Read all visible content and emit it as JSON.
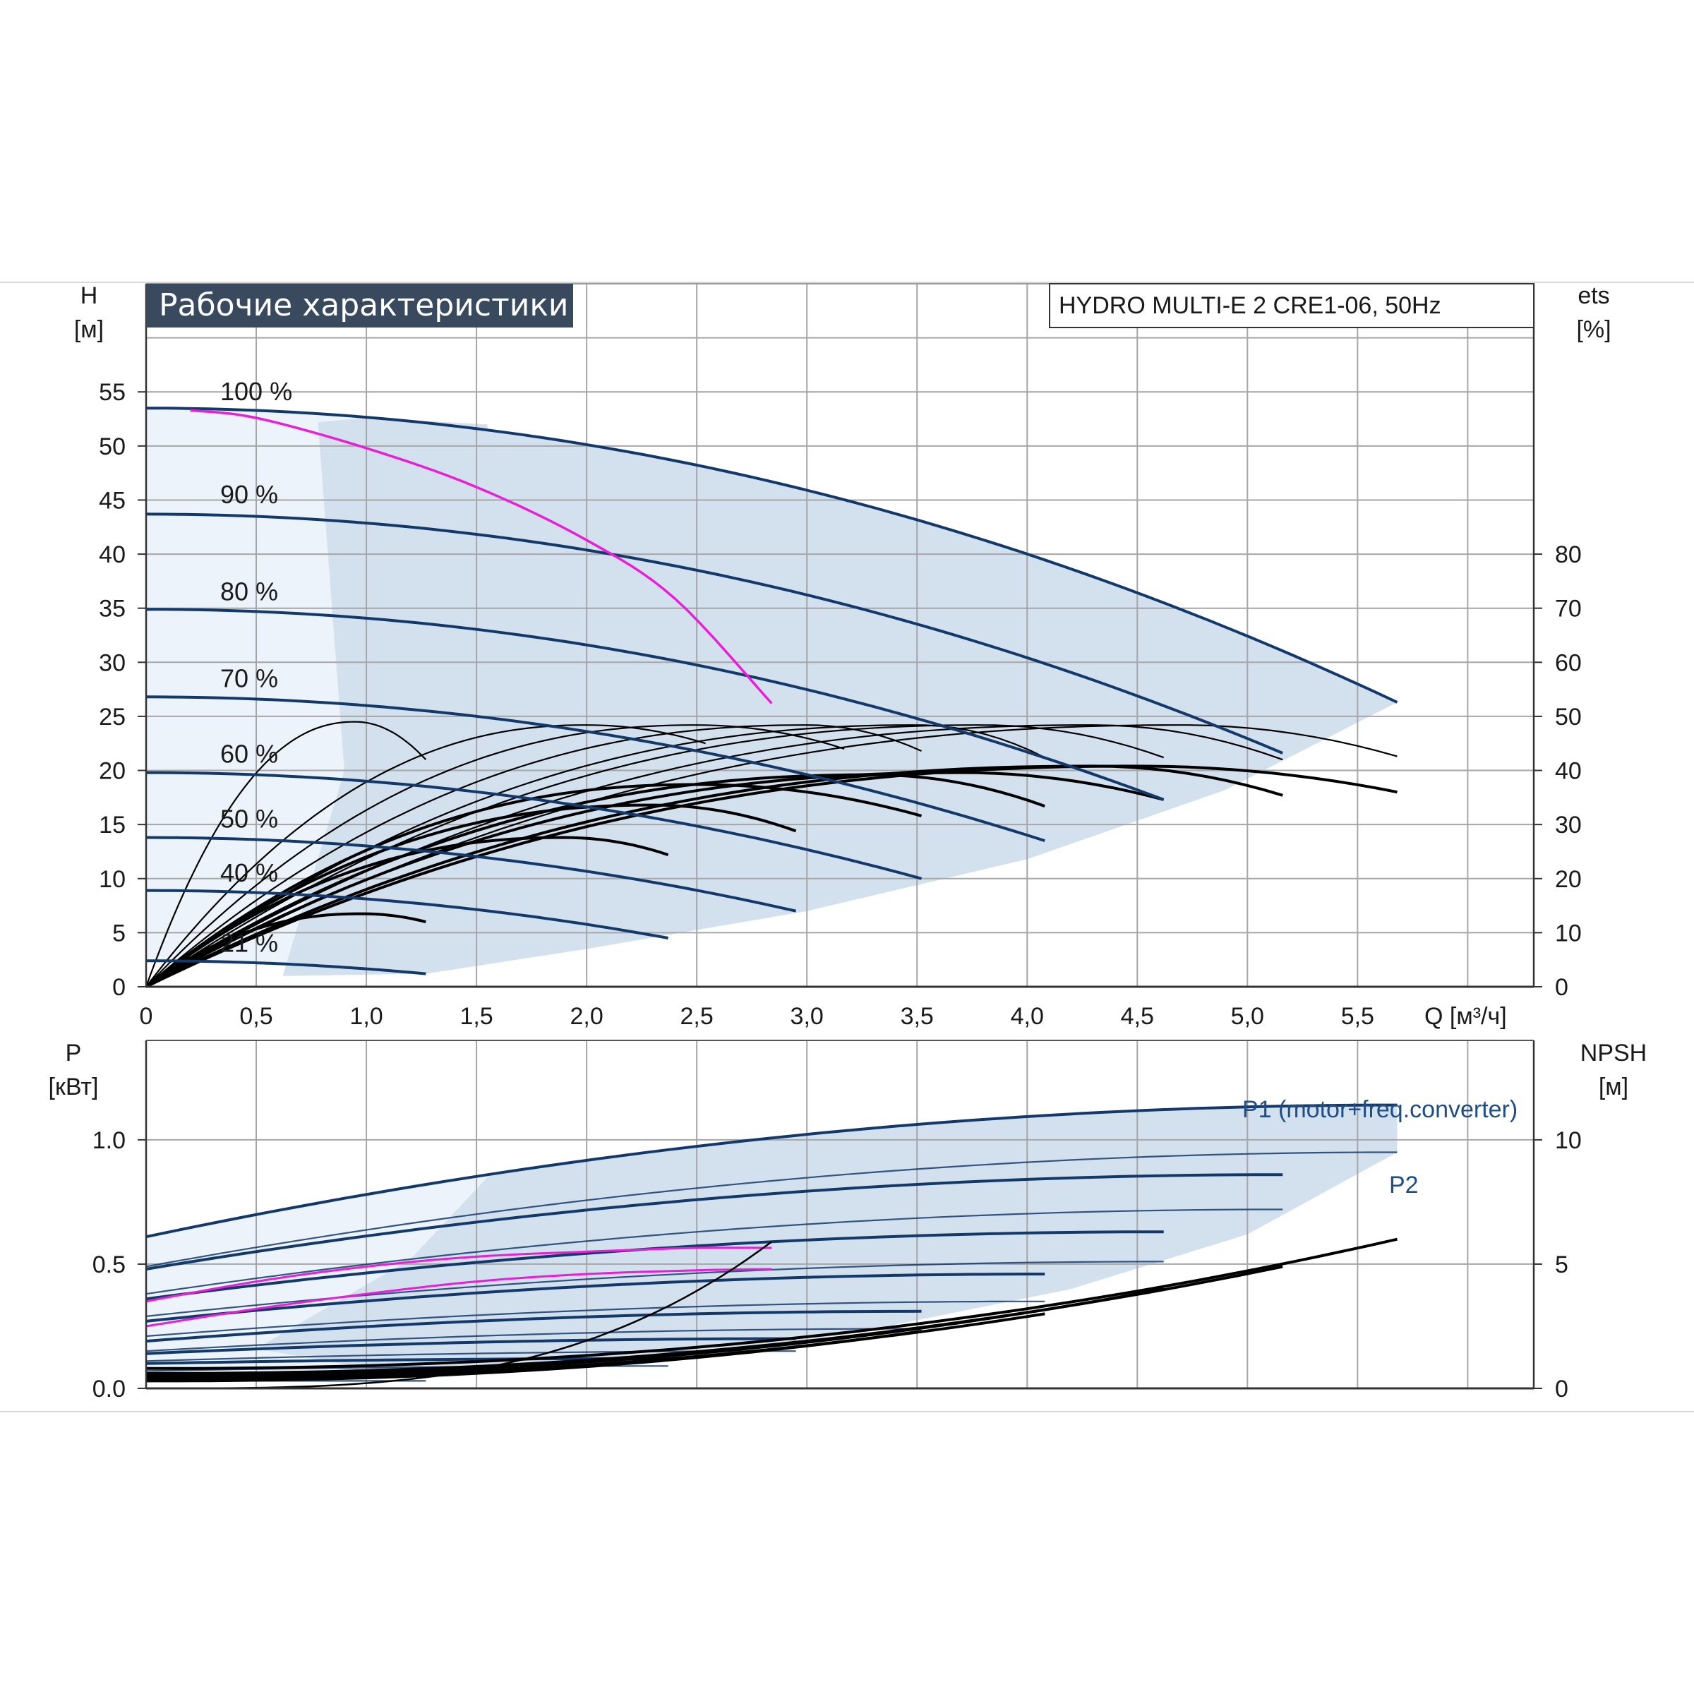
{
  "title": "Рабочие характеристики",
  "model": "HYDRO MULTI-E 2 CRE1-06, 50Hz",
  "colors": {
    "curve_blue": "#13396b",
    "pink": "#e81ed8",
    "black": "#000000",
    "area_dark": "#d3e0ee",
    "area_light": "#ecf3fa",
    "title_bg": "#3a4a5e",
    "grid": "#a6a6a6"
  },
  "chart_data": [
    {
      "id": "head",
      "type": "line",
      "y_label": "H",
      "y_unit": "[м]",
      "y2_label": "ets",
      "y2_unit": "[%]",
      "x_label": "Q [м³/ч]",
      "xlim": [
        0,
        6.3
      ],
      "ylim": [
        0,
        65
      ],
      "y2lim": [
        0,
        130
      ],
      "x_ticks": [
        "0",
        "0,5",
        "1,0",
        "1,5",
        "2,0",
        "2,5",
        "3,0",
        "3,5",
        "4,0",
        "4,5",
        "5,0",
        "5,5"
      ],
      "y_ticks": [
        "0",
        "5",
        "10",
        "15",
        "20",
        "25",
        "30",
        "35",
        "40",
        "45",
        "50",
        "55"
      ],
      "y2_ticks": [
        "0",
        "10",
        "20",
        "30",
        "40",
        "50",
        "60",
        "70",
        "80"
      ],
      "speed_labels": [
        {
          "text": "100 %",
          "y": 55
        },
        {
          "text": "90 %",
          "y": 45.5
        },
        {
          "text": "80 %",
          "y": 36.5
        },
        {
          "text": "70 %",
          "y": 28.5
        },
        {
          "text": "60 %",
          "y": 21.5
        },
        {
          "text": "50 %",
          "y": 15.5
        },
        {
          "text": "40 %",
          "y": 10.5
        },
        {
          "text": "21 %",
          "y": 4
        }
      ],
      "h_curves": [
        {
          "speed": 100,
          "h0": 53.5,
          "qmax": 5.68,
          "hend": 26.3
        },
        {
          "speed": 90,
          "h0": 43.7,
          "qmax": 5.16,
          "hend": 21.6
        },
        {
          "speed": 80,
          "h0": 34.9,
          "qmax": 4.62,
          "hend": 17.3
        },
        {
          "speed": 70,
          "h0": 26.8,
          "qmax": 4.08,
          "hend": 13.5
        },
        {
          "speed": 60,
          "h0": 19.8,
          "qmax": 3.52,
          "hend": 10.0
        },
        {
          "speed": 50,
          "h0": 13.8,
          "qmax": 2.95,
          "hend": 7.0
        },
        {
          "speed": 40,
          "h0": 8.9,
          "qmax": 2.37,
          "hend": 4.5
        },
        {
          "speed": 21,
          "h0": 2.4,
          "qmax": 1.27,
          "hend": 1.2
        }
      ],
      "pink_curve": {
        "x": [
          0.2,
          0.5,
          1.0,
          1.5,
          2.0,
          2.4,
          2.84
        ],
        "y": [
          53.3,
          52.6,
          49.8,
          46.2,
          41.3,
          35.9,
          26.2
        ]
      },
      "eta_curves": [
        {
          "peak_x": 0.95,
          "peak_eta": 49,
          "end_x": 1.27,
          "end_eta": 42
        },
        {
          "peak_x": 2.0,
          "peak_eta": 48.4,
          "end_x": 2.54,
          "end_eta": 45
        },
        {
          "peak_x": 2.5,
          "peak_eta": 48.4,
          "end_x": 3.17,
          "end_eta": 44
        },
        {
          "peak_x": 3.0,
          "peak_eta": 48.4,
          "end_x": 3.52,
          "end_eta": 43.6
        },
        {
          "peak_x": 3.5,
          "peak_eta": 48.4,
          "end_x": 4.08,
          "end_eta": 42.4
        },
        {
          "peak_x": 3.8,
          "peak_eta": 48.4,
          "end_x": 4.62,
          "end_eta": 42.4
        },
        {
          "peak_x": 4.3,
          "peak_eta": 48.4,
          "end_x": 5.16,
          "end_eta": 42
        },
        {
          "peak_x": 4.7,
          "peak_eta": 48.4,
          "end_x": 5.68,
          "end_eta": 42.6
        },
        {
          "peak_x": 0.98,
          "peak_eta": 13.5,
          "end_x": 1.27,
          "end_eta": 12
        },
        {
          "peak_x": 1.9,
          "peak_eta": 27.6,
          "end_x": 2.37,
          "end_eta": 24.4
        },
        {
          "peak_x": 2.3,
          "peak_eta": 33.6,
          "end_x": 2.95,
          "end_eta": 28.8
        },
        {
          "peak_x": 2.5,
          "peak_eta": 37.4,
          "end_x": 3.52,
          "end_eta": 31.6
        },
        {
          "peak_x": 3.3,
          "peak_eta": 39.2,
          "end_x": 4.08,
          "end_eta": 33.4
        },
        {
          "peak_x": 3.7,
          "peak_eta": 39.6,
          "end_x": 4.62,
          "end_eta": 34.6
        },
        {
          "peak_x": 4.3,
          "peak_eta": 40.8,
          "end_x": 5.16,
          "end_eta": 35.4
        },
        {
          "peak_x": 4.5,
          "peak_eta": 40.8,
          "end_x": 5.68,
          "end_eta": 36
        }
      ]
    },
    {
      "id": "power",
      "type": "line",
      "y_label": "P",
      "y_unit": "[кВт]",
      "y2_label": "NPSH",
      "y2_unit": "[м]",
      "xlim": [
        0,
        6.3
      ],
      "ylim": [
        0,
        1.4
      ],
      "y2lim": [
        0,
        14
      ],
      "y_ticks": [
        "0.0",
        "0.5",
        "1.0"
      ],
      "y2_ticks": [
        "0",
        "5",
        "10"
      ],
      "legend": [
        {
          "label": "P1 (motor+freq.converter)"
        },
        {
          "label": "P2"
        }
      ],
      "p1_curves": [
        {
          "speed": 100,
          "p0": 0.61,
          "pmax": 1.14,
          "qmax": 5.68
        },
        {
          "speed": 90,
          "p0": 0.48,
          "pmax": 0.86,
          "qmax": 5.16
        },
        {
          "speed": 80,
          "p0": 0.36,
          "pmax": 0.63,
          "qmax": 4.62
        },
        {
          "speed": 70,
          "p0": 0.27,
          "pmax": 0.46,
          "qmax": 4.08
        },
        {
          "speed": 60,
          "p0": 0.19,
          "pmax": 0.31,
          "qmax": 3.52
        },
        {
          "speed": 50,
          "p0": 0.14,
          "pmax": 0.2,
          "qmax": 2.95
        },
        {
          "speed": 40,
          "p0": 0.1,
          "pmax": 0.12,
          "qmax": 2.37
        },
        {
          "speed": 21,
          "p0": 0.05,
          "pmax": 0.05,
          "qmax": 1.27
        }
      ],
      "p2_curves": [
        {
          "speed": 100,
          "p0": 0.49,
          "pmax": 0.95,
          "qmax": 5.68
        },
        {
          "speed": 90,
          "p0": 0.38,
          "pmax": 0.72,
          "qmax": 5.16
        },
        {
          "speed": 80,
          "p0": 0.29,
          "pmax": 0.51,
          "qmax": 4.62
        },
        {
          "speed": 70,
          "p0": 0.21,
          "pmax": 0.35,
          "qmax": 4.08
        },
        {
          "speed": 60,
          "p0": 0.15,
          "pmax": 0.24,
          "qmax": 3.52
        },
        {
          "speed": 50,
          "p0": 0.11,
          "pmax": 0.15,
          "qmax": 2.95
        },
        {
          "speed": 40,
          "p0": 0.07,
          "pmax": 0.09,
          "qmax": 2.37
        },
        {
          "speed": 21,
          "p0": 0.03,
          "pmax": 0.03,
          "qmax": 1.27
        }
      ],
      "pink_p1": {
        "x": [
          0,
          0.5,
          1.0,
          1.5,
          2.0,
          2.5,
          2.84
        ],
        "y": [
          0.35,
          0.43,
          0.49,
          0.53,
          0.55,
          0.565,
          0.565
        ]
      },
      "pink_p2": {
        "x": [
          0,
          0.5,
          1.0,
          1.5,
          2.0,
          2.5,
          2.84
        ],
        "y": [
          0.25,
          0.32,
          0.38,
          0.43,
          0.46,
          0.475,
          0.48
        ]
      },
      "npsh_curves": [
        {
          "qmax": 2.84,
          "nmax": 5.9,
          "n0": 0.0
        },
        {
          "qmax": 3.52,
          "nmax": 2.3,
          "n0": 0.3
        },
        {
          "qmax": 4.08,
          "nmax": 3.0,
          "n0": 0.4
        },
        {
          "qmax": 4.62,
          "nmax": 4.0,
          "n0": 0.5
        },
        {
          "qmax": 5.16,
          "nmax": 4.9,
          "n0": 0.6
        },
        {
          "qmax": 5.68,
          "nmax": 6.0,
          "n0": 0.8
        }
      ]
    }
  ]
}
